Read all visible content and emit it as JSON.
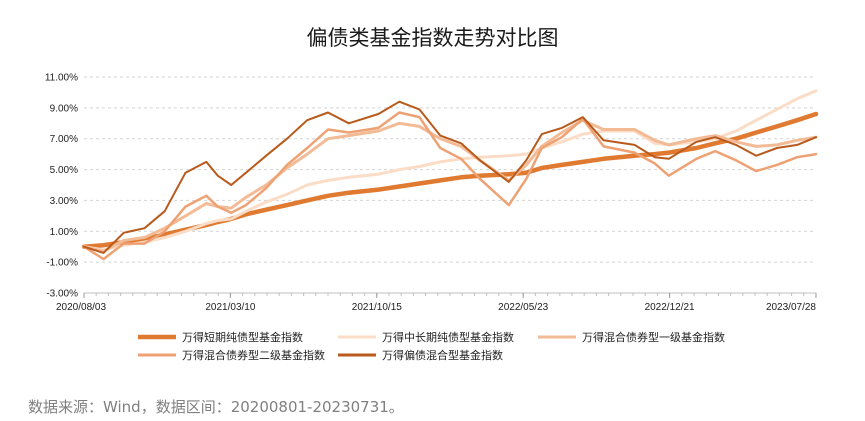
{
  "chart_data": {
    "type": "line",
    "title": "偏债类基金指数走势对比图",
    "xlabel": "",
    "ylabel": "",
    "x_tick_labels": [
      "2020/08/03",
      "2021/03/10",
      "2021/10/15",
      "2022/05/23",
      "2022/12/21",
      "2023/07/28"
    ],
    "y_tick_labels": [
      "11.00%",
      "9.00%",
      "7.00%",
      "5.00%",
      "3.00%",
      "1.00%",
      "-1.00%",
      "-3.00%"
    ],
    "ylim": [
      -3,
      11
    ],
    "xlim": [
      "2020-08-03",
      "2023-07-28"
    ],
    "grid": "horizontal",
    "legend_position": "bottom",
    "x": [
      "2020-08-03",
      "2020-09-01",
      "2020-10-01",
      "2020-11-01",
      "2020-12-01",
      "2021-01-01",
      "2021-02-01",
      "2021-02-18",
      "2021-03-10",
      "2021-04-01",
      "2021-05-01",
      "2021-06-01",
      "2021-07-01",
      "2021-08-01",
      "2021-09-01",
      "2021-10-15",
      "2021-11-15",
      "2021-12-15",
      "2022-01-15",
      "2022-02-15",
      "2022-03-15",
      "2022-04-27",
      "2022-05-23",
      "2022-06-15",
      "2022-07-15",
      "2022-08-15",
      "2022-09-15",
      "2022-10-31",
      "2022-11-30",
      "2022-12-21",
      "2023-01-31",
      "2023-02-28",
      "2023-03-31",
      "2023-04-30",
      "2023-05-31",
      "2023-06-30",
      "2023-07-28"
    ],
    "series": [
      {
        "name": "万得短期纯债型基金指数",
        "color": "#e07a30",
        "width": 4.5,
        "values": [
          0.0,
          0.1,
          0.3,
          0.5,
          0.8,
          1.1,
          1.4,
          1.6,
          1.8,
          2.1,
          2.4,
          2.7,
          3.0,
          3.3,
          3.5,
          3.7,
          3.9,
          4.1,
          4.3,
          4.5,
          4.6,
          4.7,
          4.8,
          5.1,
          5.3,
          5.5,
          5.7,
          5.9,
          6.0,
          6.1,
          6.4,
          6.7,
          7.0,
          7.4,
          7.8,
          8.2,
          8.6
        ]
      },
      {
        "name": "万得中长期纯债型基金指数",
        "color": "#fbdcc6",
        "width": 3,
        "values": [
          0.0,
          -0.2,
          0.1,
          0.3,
          0.6,
          1.0,
          1.5,
          1.7,
          1.8,
          2.3,
          2.9,
          3.4,
          4.0,
          4.3,
          4.5,
          4.7,
          5.0,
          5.2,
          5.5,
          5.7,
          5.8,
          5.9,
          6.0,
          6.4,
          6.8,
          7.3,
          7.5,
          7.5,
          6.7,
          6.6,
          6.8,
          7.0,
          7.5,
          8.2,
          8.9,
          9.6,
          10.1
        ]
      },
      {
        "name": "万得混合债券型一级基金指数",
        "color": "#f3bb95",
        "width": 3,
        "values": [
          0.0,
          -0.3,
          0.4,
          0.6,
          1.2,
          2.0,
          2.8,
          2.6,
          2.5,
          3.2,
          4.0,
          5.1,
          6.0,
          7.0,
          7.2,
          7.5,
          8.0,
          7.8,
          7.0,
          6.5,
          5.6,
          4.3,
          5.3,
          6.5,
          7.4,
          8.2,
          7.6,
          7.6,
          6.9,
          6.6,
          7.0,
          7.2,
          6.8,
          6.5,
          6.6,
          6.9,
          7.1
        ]
      },
      {
        "name": "万得混合债券型二级基金指数",
        "color": "#eea274",
        "width": 2.5,
        "values": [
          0.0,
          -0.8,
          0.2,
          0.2,
          1.0,
          2.6,
          3.3,
          2.6,
          2.2,
          2.7,
          3.8,
          5.3,
          6.4,
          7.6,
          7.4,
          7.7,
          8.7,
          8.4,
          6.4,
          5.7,
          4.4,
          2.7,
          4.4,
          6.4,
          7.1,
          8.3,
          6.5,
          6.1,
          5.4,
          4.6,
          5.7,
          6.2,
          5.6,
          4.9,
          5.3,
          5.8,
          6.0
        ]
      },
      {
        "name": "万得偏债混合型基金指数",
        "color": "#b85a1c",
        "width": 2,
        "values": [
          0.0,
          -0.4,
          0.9,
          1.2,
          2.3,
          4.8,
          5.5,
          4.6,
          4.0,
          4.8,
          5.9,
          7.0,
          8.2,
          8.7,
          8.0,
          8.6,
          9.4,
          8.9,
          7.2,
          6.7,
          5.6,
          4.2,
          5.6,
          7.3,
          7.7,
          8.4,
          6.9,
          6.6,
          5.8,
          5.7,
          6.8,
          7.1,
          6.6,
          5.9,
          6.4,
          6.6,
          7.1
        ]
      }
    ]
  },
  "source_note": "数据来源：Wind，数据区间：20200801-20230731。"
}
